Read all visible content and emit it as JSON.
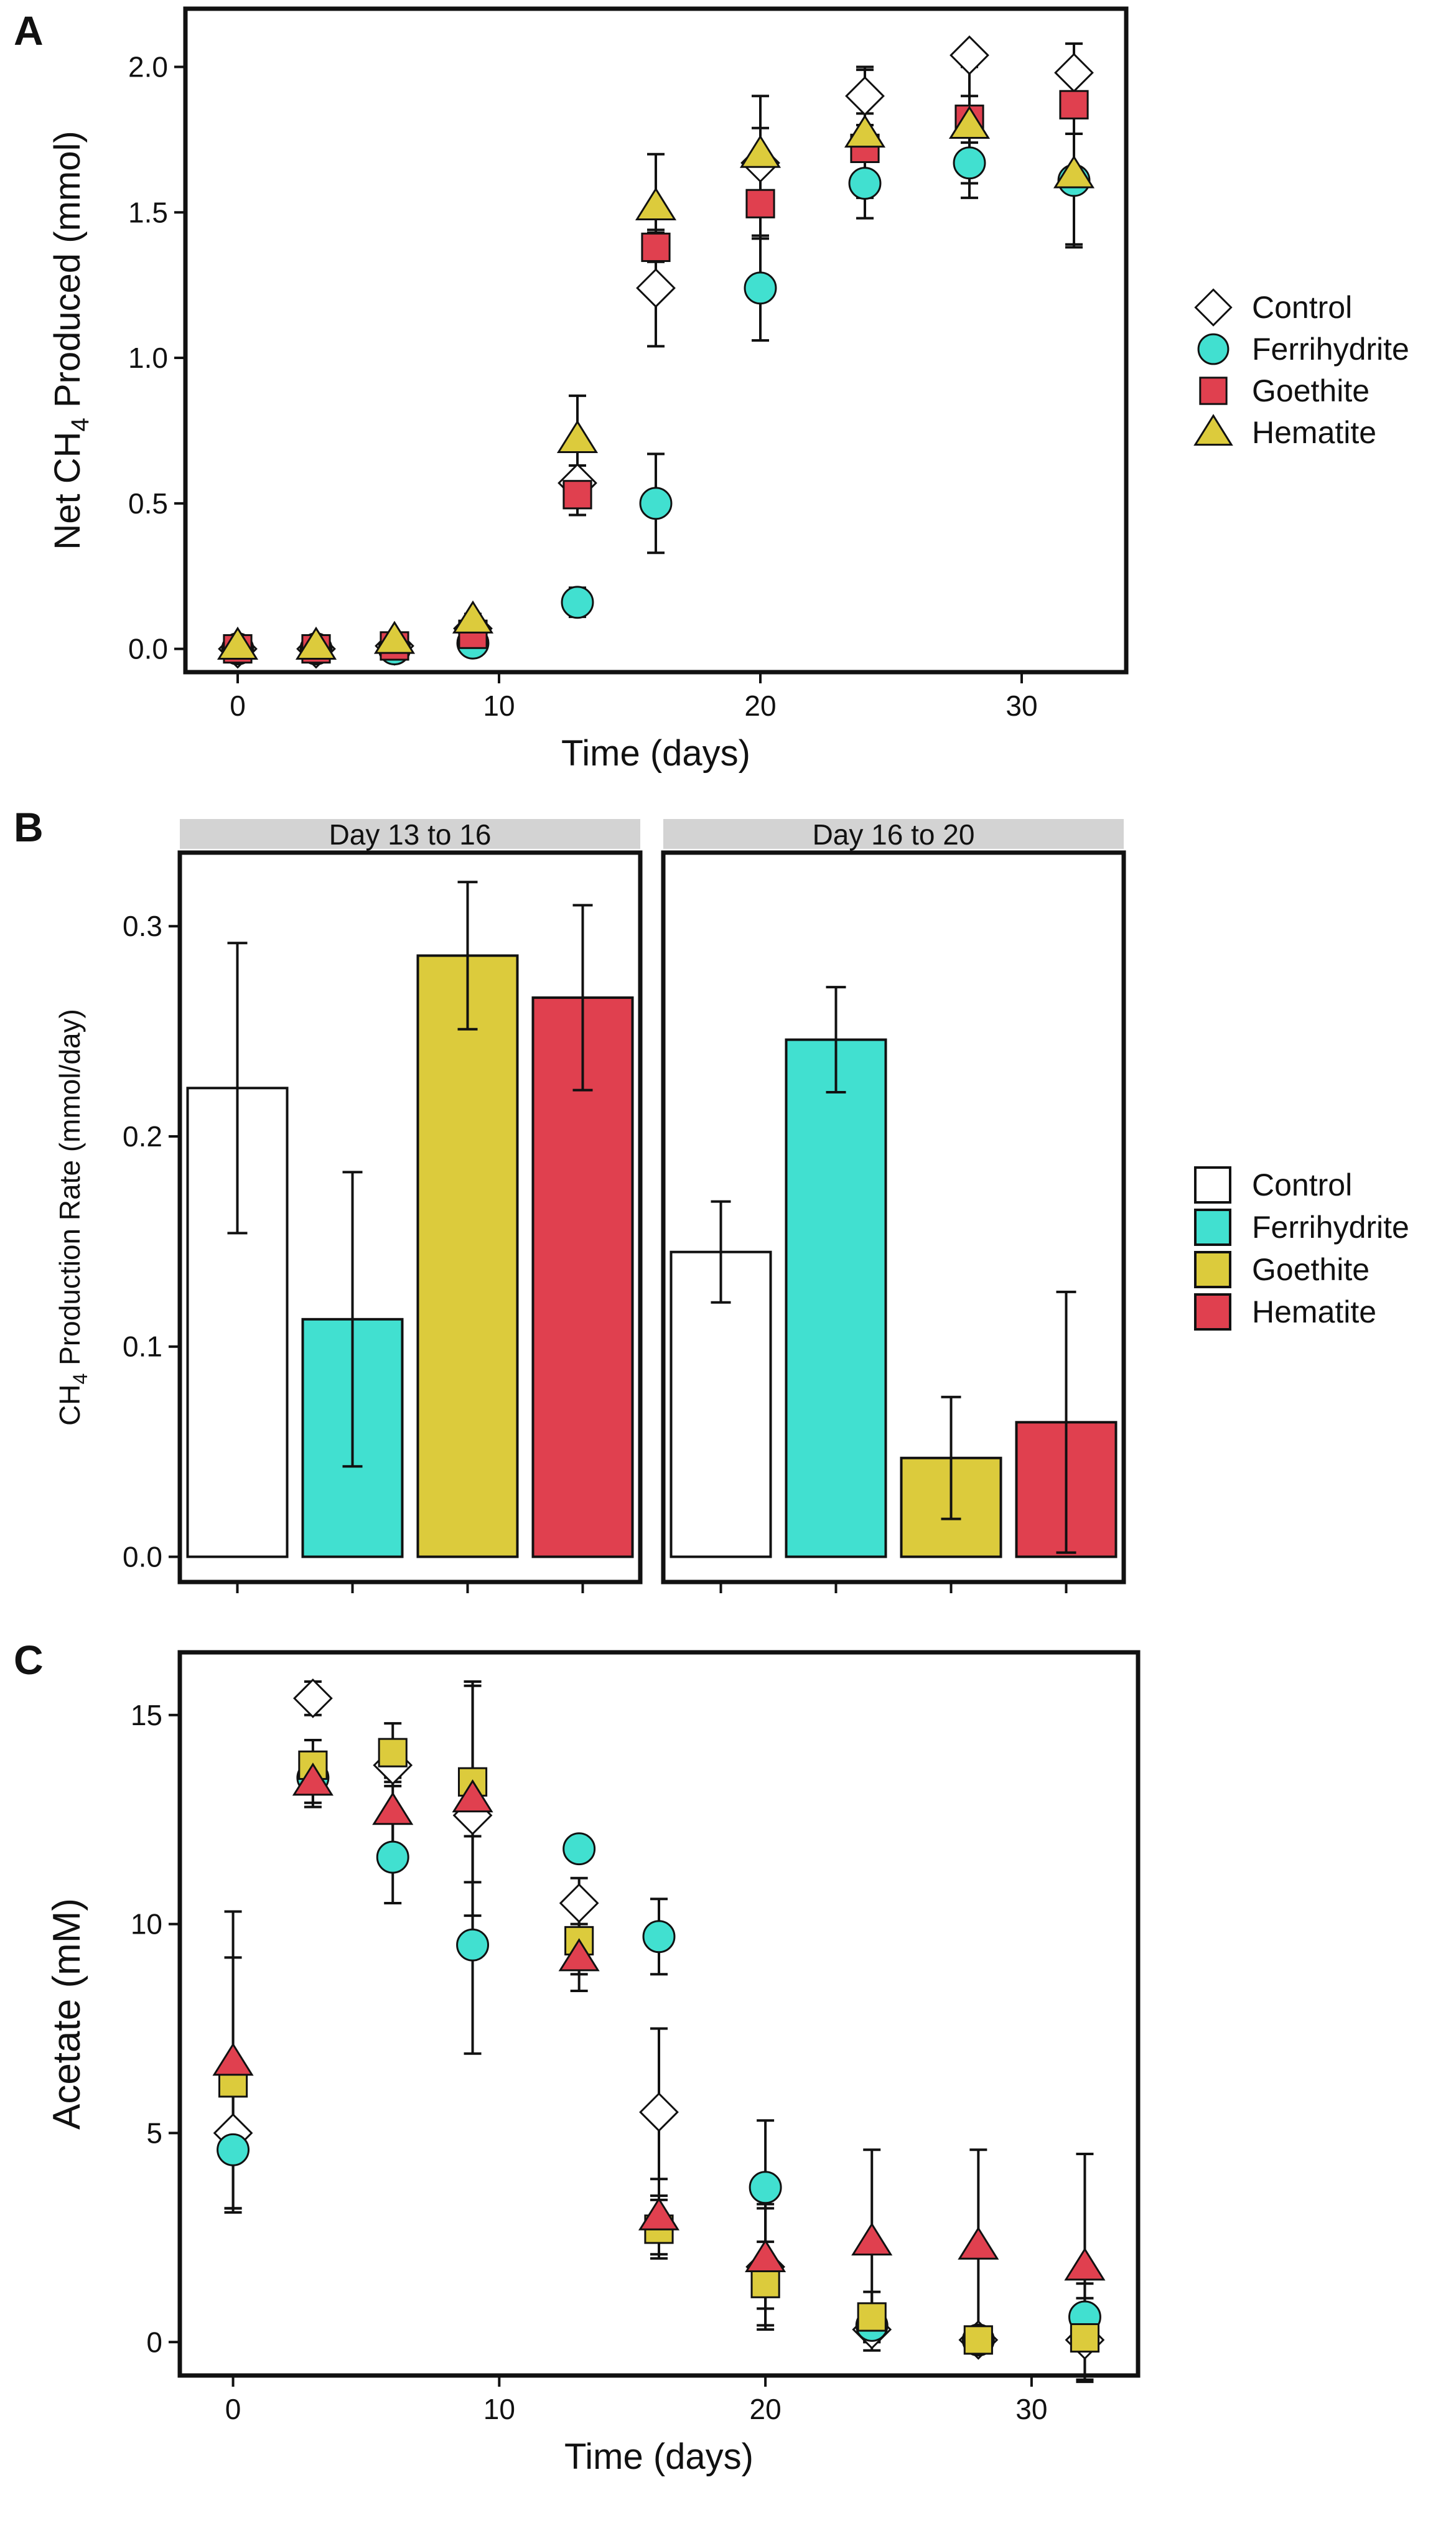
{
  "colors": {
    "Control": "#ffffff",
    "Ferrihydrite": "#41e0d0",
    "Goethite_points": "#e0404f",
    "Hematite_points": "#dccb3c",
    "Goethite_bars": "#dccb3c",
    "Hematite_bars": "#e0404f",
    "strip": "#d3d3d3",
    "ink": "#111111"
  },
  "chart_data": [
    {
      "panel_letter": "A",
      "type": "scatter",
      "xlabel": "Time (days)",
      "ylabel_prefix": "Net CH",
      "ylabel_sub": "4",
      "ylabel_suffix": " Produced (mmol)",
      "xlim": [
        -2,
        34
      ],
      "ylim": [
        -0.08,
        2.2
      ],
      "xticks": [
        0,
        10,
        20,
        30
      ],
      "yticks": [
        0.0,
        0.5,
        1.0,
        1.5,
        2.0
      ],
      "ytick_labels": [
        "0.0",
        "0.5",
        "1.0",
        "1.5",
        "2.0"
      ],
      "legend": [
        "Control",
        "Ferrihydrite",
        "Goethite",
        "Hematite"
      ],
      "legend_shapes": [
        "diamond",
        "circle",
        "square",
        "triangle"
      ],
      "legend_colors": [
        "Control",
        "Ferrihydrite",
        "Goethite_points",
        "Hematite_points"
      ],
      "series": [
        {
          "name": "Control",
          "shape": "diamond",
          "color": "Control",
          "x": [
            0,
            3,
            6,
            9,
            13,
            16,
            20,
            24,
            28,
            32
          ],
          "y": [
            0.0,
            0.0,
            0.01,
            0.07,
            0.57,
            1.24,
            1.67,
            1.9,
            2.04,
            1.98
          ],
          "err": [
            0.01,
            0.01,
            0.01,
            0.02,
            0.06,
            0.2,
            0.12,
            0.1,
            0.03,
            0.1
          ]
        },
        {
          "name": "Ferrihydrite",
          "shape": "circle",
          "color": "Ferrihydrite",
          "x": [
            0,
            3,
            6,
            9,
            13,
            16,
            20,
            24,
            28,
            32
          ],
          "y": [
            0.0,
            0.0,
            0.0,
            0.02,
            0.16,
            0.5,
            1.24,
            1.6,
            1.67,
            1.61
          ],
          "err": [
            0.01,
            0.01,
            0.01,
            0.01,
            0.05,
            0.17,
            0.18,
            0.12,
            0.12,
            0.22
          ]
        },
        {
          "name": "Goethite",
          "shape": "square",
          "color": "Goethite_points",
          "x": [
            0,
            3,
            6,
            9,
            13,
            16,
            20,
            24,
            28,
            32
          ],
          "y": [
            0.0,
            0.0,
            0.01,
            0.05,
            0.53,
            1.38,
            1.53,
            1.72,
            1.82,
            1.87
          ],
          "err": [
            0.01,
            0.01,
            0.01,
            0.02,
            0.07,
            0.05,
            0.12,
            0.12,
            0.08,
            0.1
          ]
        },
        {
          "name": "Hematite",
          "shape": "triangle",
          "color": "Hematite_points",
          "x": [
            0,
            3,
            6,
            9,
            13,
            16,
            20,
            24,
            28,
            32
          ],
          "y": [
            0.01,
            0.01,
            0.03,
            0.1,
            0.72,
            1.52,
            1.7,
            1.77,
            1.8,
            1.63
          ],
          "err": [
            0.01,
            0.01,
            0.01,
            0.02,
            0.15,
            0.18,
            0.2,
            0.22,
            0.2,
            0.25
          ]
        }
      ]
    },
    {
      "panel_letter": "B",
      "type": "bar",
      "ylabel_prefix": "CH",
      "ylabel_sub": "4",
      "ylabel_suffix": " Production Rate (mmol/day)",
      "ylim": [
        -0.012,
        0.335
      ],
      "yticks": [
        0.0,
        0.1,
        0.2,
        0.3
      ],
      "ytick_labels": [
        "0.0",
        "0.1",
        "0.2",
        "0.3"
      ],
      "categories": [
        "Control",
        "Ferrihydrite",
        "Goethite",
        "Hematite"
      ],
      "bar_colors": [
        "Control",
        "Ferrihydrite",
        "Goethite_bars",
        "Hematite_bars"
      ],
      "legend": [
        "Control",
        "Ferrihydrite",
        "Goethite",
        "Hematite"
      ],
      "facets": [
        {
          "label": "Day 13 to 16",
          "values": [
            0.223,
            0.113,
            0.286,
            0.266
          ],
          "err": [
            0.069,
            0.07,
            0.035,
            0.044
          ]
        },
        {
          "label": "Day 16 to 20",
          "values": [
            0.145,
            0.246,
            0.047,
            0.064
          ],
          "err": [
            0.024,
            0.025,
            0.029,
            0.062
          ]
        }
      ]
    },
    {
      "panel_letter": "C",
      "type": "scatter",
      "xlabel": "Time (days)",
      "ylabel": "Acetate (mM)",
      "xlim": [
        -2,
        34
      ],
      "ylim": [
        -0.8,
        16.5
      ],
      "xticks": [
        0,
        10,
        20,
        30
      ],
      "yticks": [
        0,
        5,
        10,
        15
      ],
      "ytick_labels": [
        "0",
        "5",
        "10",
        "15"
      ],
      "series": [
        {
          "name": "Control",
          "shape": "diamond",
          "color": "Control",
          "x": [
            0,
            3,
            6,
            9,
            13,
            16,
            20,
            24,
            28,
            32
          ],
          "y": [
            5.0,
            15.4,
            13.8,
            12.6,
            10.5,
            5.5,
            1.8,
            0.3,
            0.05,
            0.05
          ],
          "err": [
            1.8,
            0.4,
            0.5,
            3.1,
            0.6,
            2.0,
            1.5,
            0.5,
            0.1,
            1.0
          ]
        },
        {
          "name": "Ferrihydrite",
          "shape": "circle",
          "color": "Ferrihydrite",
          "x": [
            0,
            3,
            6,
            9,
            13,
            16,
            20,
            24,
            28,
            32
          ],
          "y": [
            4.6,
            13.5,
            11.6,
            9.5,
            11.8,
            9.7,
            3.7,
            0.4,
            0.05,
            0.6
          ],
          "err": [
            1.4,
            0.6,
            1.1,
            2.6,
            0.3,
            0.9,
            1.6,
            0.4,
            0.1,
            0.8
          ]
        },
        {
          "name": "Goethite",
          "shape": "square",
          "color": "Goethite_bars",
          "x": [
            0,
            3,
            6,
            9,
            13,
            16,
            20,
            24,
            28,
            32
          ],
          "y": [
            6.2,
            13.8,
            14.1,
            13.4,
            9.6,
            2.7,
            1.4,
            0.6,
            0.05,
            0.1
          ],
          "err": [
            3.0,
            0.6,
            0.7,
            2.4,
            0.8,
            0.7,
            1.0,
            0.6,
            0.1,
            0.3
          ]
        },
        {
          "name": "Hematite",
          "shape": "triangle",
          "color": "Hematite_bars",
          "x": [
            0,
            3,
            6,
            9,
            13,
            16,
            20,
            24,
            28,
            32
          ],
          "y": [
            6.7,
            13.4,
            12.7,
            13.0,
            9.2,
            3.0,
            2.0,
            2.4,
            2.3,
            1.8
          ],
          "err": [
            3.6,
            0.6,
            0.8,
            2.8,
            0.8,
            0.9,
            1.2,
            2.2,
            2.3,
            2.7
          ]
        }
      ]
    }
  ]
}
